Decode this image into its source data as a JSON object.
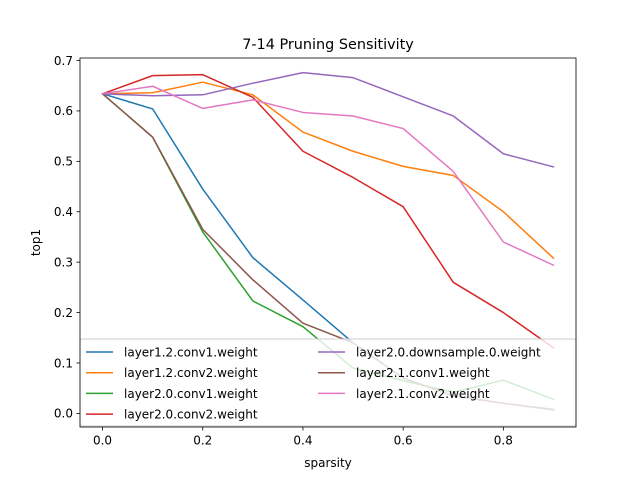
{
  "chart_data": {
    "type": "line",
    "title": "7-14 Pruning Sensitivity",
    "xlabel": "sparsity",
    "ylabel": "top1",
    "xlim": [
      -0.045,
      0.945
    ],
    "ylim": [
      -0.027,
      0.705
    ],
    "xticks": [
      0.0,
      0.2,
      0.4,
      0.6,
      0.8
    ],
    "xtick_labels": [
      "0.0",
      "0.2",
      "0.4",
      "0.6",
      "0.8"
    ],
    "yticks": [
      0.0,
      0.1,
      0.2,
      0.3,
      0.4,
      0.5,
      0.6,
      0.7
    ],
    "ytick_labels": [
      "0.0",
      "0.1",
      "0.2",
      "0.3",
      "0.4",
      "0.5",
      "0.6",
      "0.7"
    ],
    "grid": false,
    "legend": "lower-center, 2 columns",
    "x": [
      0.0,
      0.1,
      0.2,
      0.3,
      0.4,
      0.5,
      0.6,
      0.7,
      0.8,
      0.9
    ],
    "series": [
      {
        "name": "layer1.2.conv1.weight",
        "color": "#1f77b4",
        "values": [
          0.634,
          0.604,
          0.445,
          0.309,
          0.225,
          0.14,
          0.07,
          0.035,
          0.02,
          0.008
        ]
      },
      {
        "name": "layer1.2.conv2.weight",
        "color": "#ff7f0e",
        "values": [
          0.634,
          0.636,
          0.657,
          0.632,
          0.558,
          0.52,
          0.49,
          0.472,
          0.4,
          0.308
        ]
      },
      {
        "name": "layer2.0.conv1.weight",
        "color": "#2ca02c",
        "values": [
          0.634,
          0.548,
          0.36,
          0.223,
          0.172,
          0.09,
          0.065,
          0.042,
          0.066,
          0.028
        ]
      },
      {
        "name": "layer2.0.conv2.weight",
        "color": "#d62728",
        "values": [
          0.634,
          0.67,
          0.672,
          0.627,
          0.52,
          0.468,
          0.41,
          0.26,
          0.2,
          0.13
        ]
      },
      {
        "name": "layer2.0.downsample.0.weight",
        "color": "#9467bd",
        "values": [
          0.634,
          0.63,
          0.632,
          0.655,
          0.676,
          0.666,
          0.628,
          0.59,
          0.515,
          0.489
        ]
      },
      {
        "name": "layer2.1.conv1.weight",
        "color": "#8c564b",
        "values": [
          0.634,
          0.548,
          0.365,
          0.265,
          0.179,
          0.14,
          0.07,
          0.035,
          0.02,
          0.007
        ]
      },
      {
        "name": "layer2.1.conv2.weight",
        "color": "#e377c2",
        "values": [
          0.634,
          0.649,
          0.605,
          0.622,
          0.597,
          0.59,
          0.565,
          0.48,
          0.34,
          0.294
        ]
      }
    ]
  }
}
